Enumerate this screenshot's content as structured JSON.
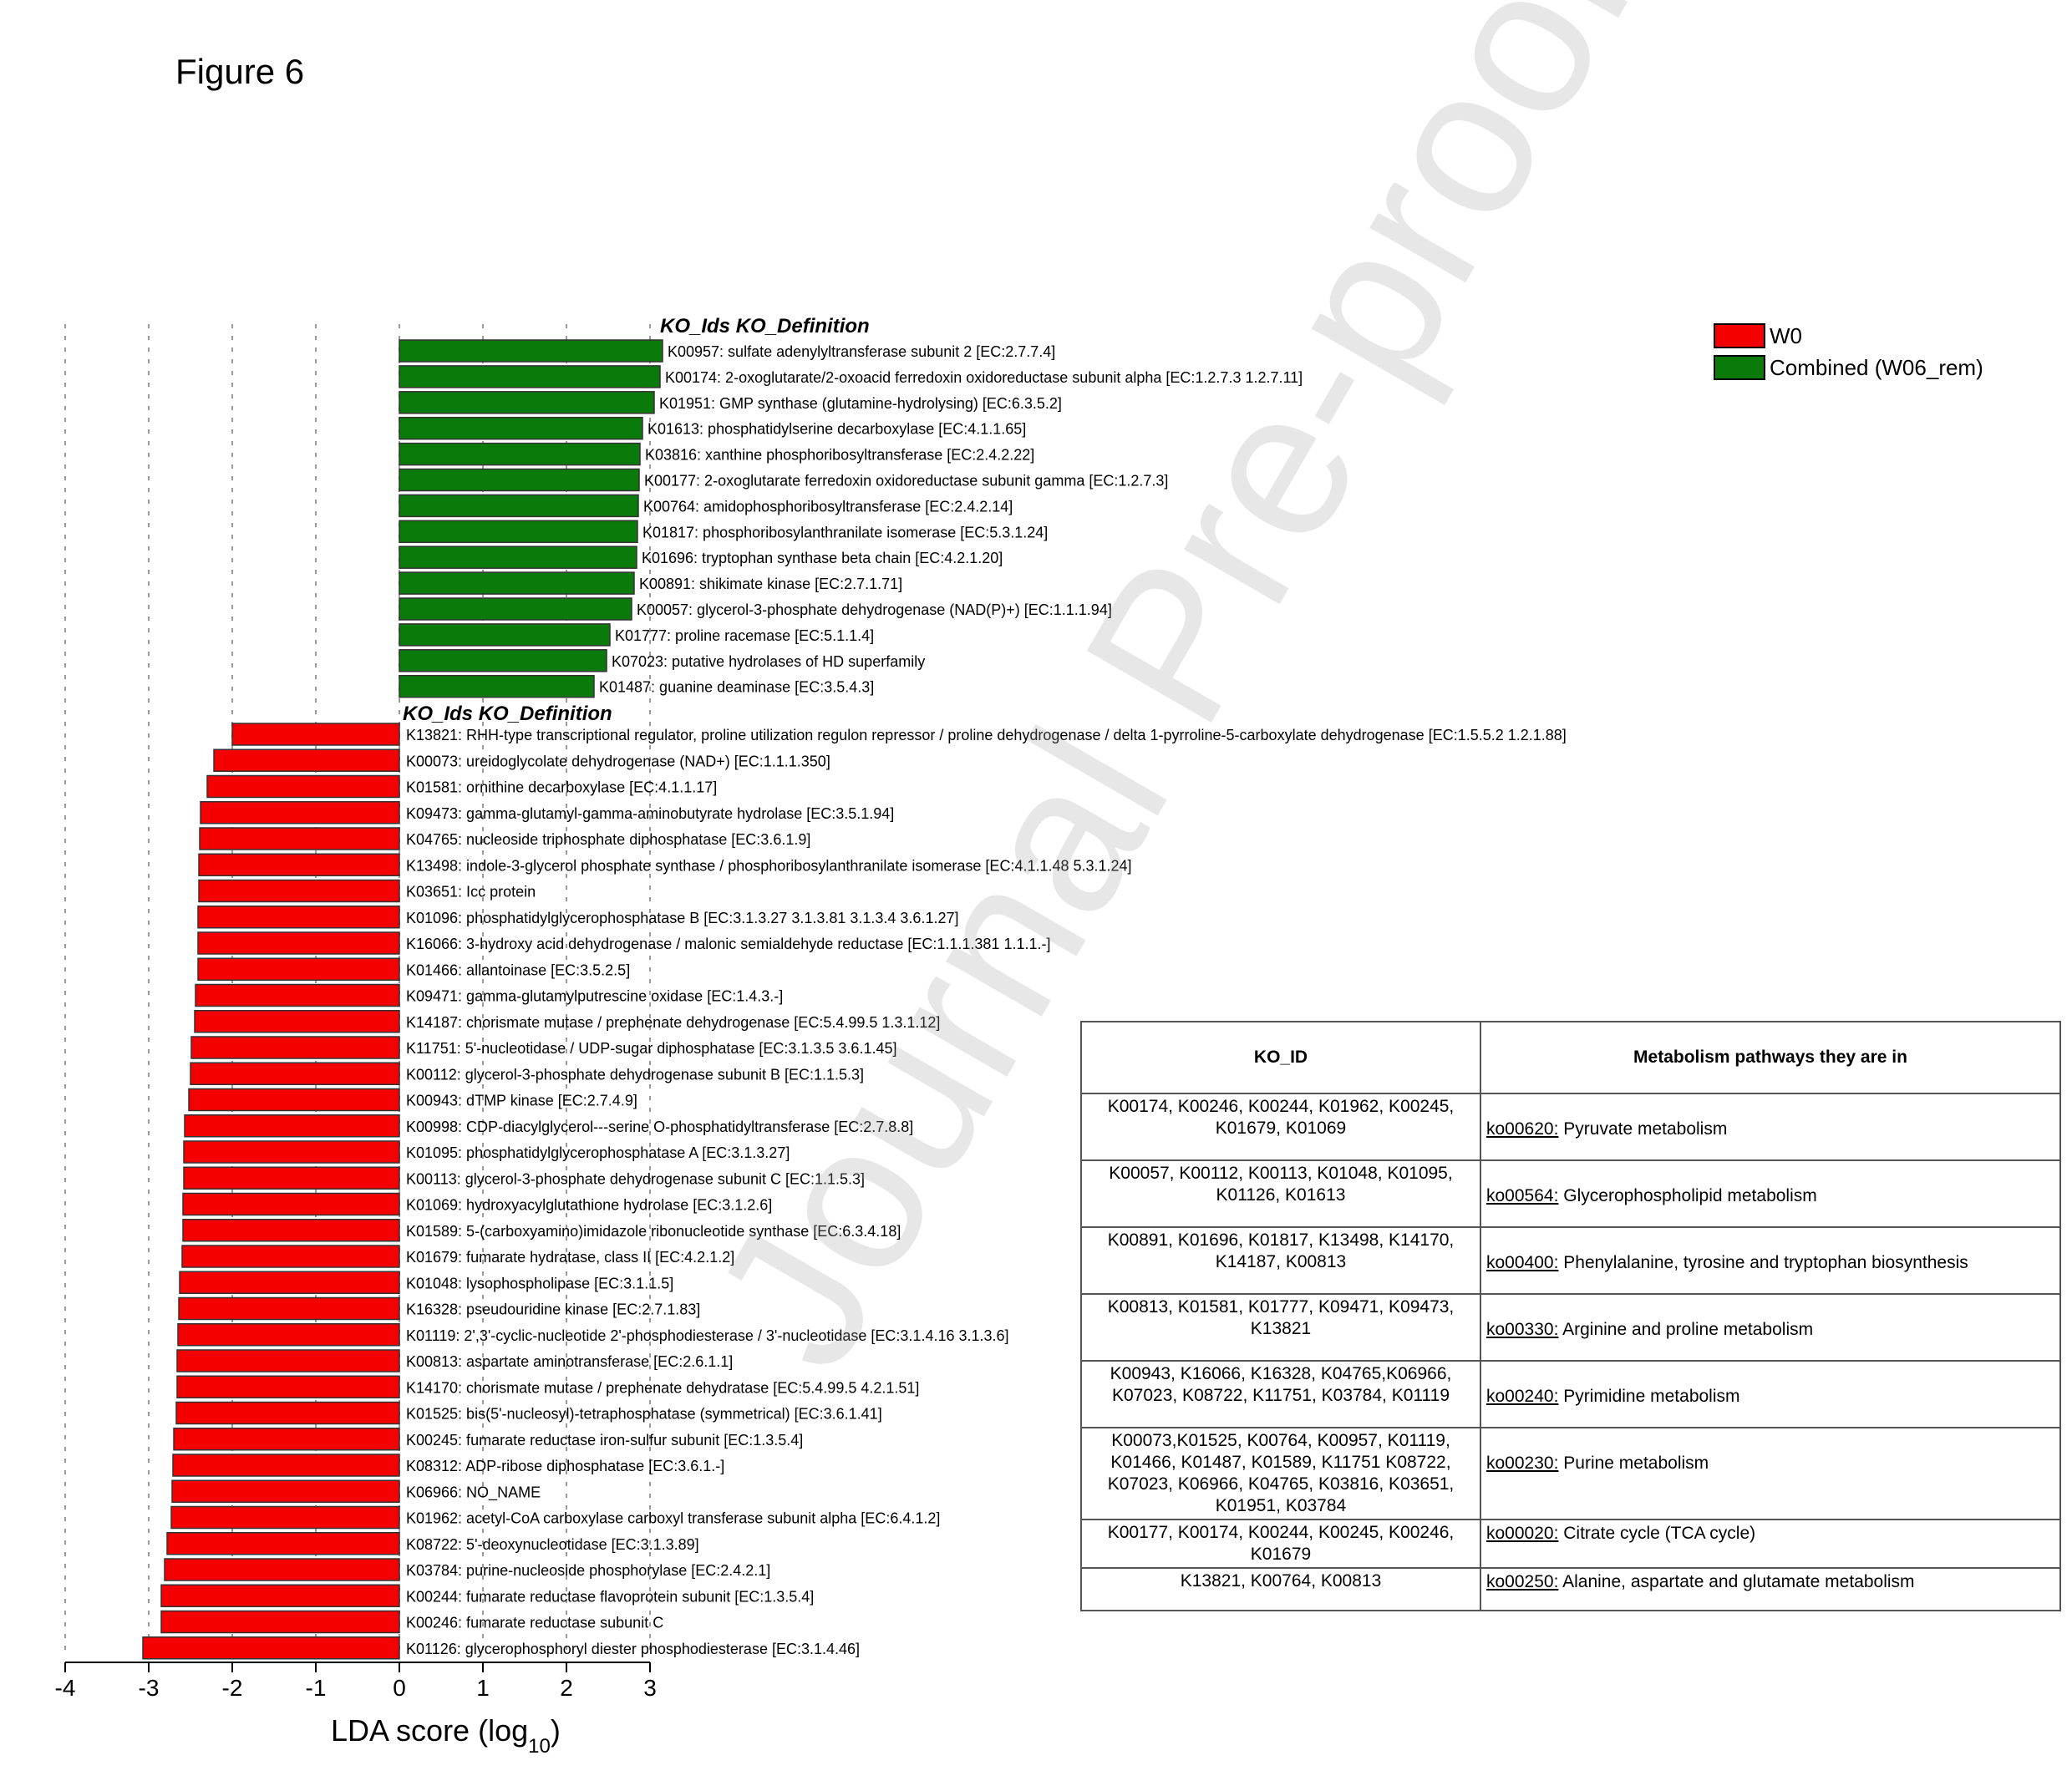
{
  "figure_title": "Figure 6",
  "watermark_text": "Journal Pre-proof",
  "chart_data": {
    "type": "bar",
    "orientation": "horizontal",
    "xlabel": "LDA score (log",
    "xlabel_sub": "10",
    "xlabel_close": ")",
    "xlim": [
      -4,
      3
    ],
    "xticks": [
      "-4",
      "-3",
      "-2",
      "-1",
      "0",
      "1",
      "2",
      "3"
    ],
    "grid": true,
    "legend_position": "top-right",
    "legend": [
      {
        "label": "W0",
        "color": "#f50000"
      },
      {
        "label": "Combined (W06_rem)",
        "color": "#0a7a0a"
      }
    ],
    "section_header": "KO_Ids  KO_Definition",
    "series": [
      {
        "name": "Combined (W06_rem)",
        "color": "#0a7a0a",
        "bars": [
          {
            "value": 3.15,
            "label": "K00957: sulfate adenylyltransferase subunit 2 [EC:2.7.7.4]"
          },
          {
            "value": 3.12,
            "label": "K00174: 2-oxoglutarate/2-oxoacid ferredoxin oxidoreductase subunit alpha [EC:1.2.7.3 1.2.7.11]"
          },
          {
            "value": 3.05,
            "label": "K01951: GMP synthase (glutamine-hydrolysing) [EC:6.3.5.2]"
          },
          {
            "value": 2.91,
            "label": "K01613: phosphatidylserine decarboxylase [EC:4.1.1.65]"
          },
          {
            "value": 2.88,
            "label": "K03816: xanthine phosphoribosyltransferase [EC:2.4.2.22]"
          },
          {
            "value": 2.87,
            "label": "K00177: 2-oxoglutarate ferredoxin oxidoreductase subunit gamma [EC:1.2.7.3]"
          },
          {
            "value": 2.86,
            "label": "K00764: amidophosphoribosyltransferase [EC:2.4.2.14]"
          },
          {
            "value": 2.85,
            "label": "K01817: phosphoribosylanthranilate isomerase [EC:5.3.1.24]"
          },
          {
            "value": 2.84,
            "label": "K01696: tryptophan synthase beta chain [EC:4.2.1.20]"
          },
          {
            "value": 2.81,
            "label": "K00891: shikimate kinase [EC:2.7.1.71]"
          },
          {
            "value": 2.78,
            "label": "K00057: glycerol-3-phosphate dehydrogenase (NAD(P)+) [EC:1.1.1.94]"
          },
          {
            "value": 2.52,
            "label": "K01777: proline racemase [EC:5.1.1.4]"
          },
          {
            "value": 2.48,
            "label": "K07023: putative hydrolases of HD superfamily"
          },
          {
            "value": 2.33,
            "label": "K01487: guanine deaminase [EC:3.5.4.3]"
          }
        ]
      },
      {
        "name": "W0",
        "color": "#f50000",
        "bars": [
          {
            "value": -2.0,
            "label": "K13821: RHH-type transcriptional regulator, proline utilization regulon repressor / proline dehydrogenase / delta 1-pyrroline-5-carboxylate dehydrogenase [EC:1.5.5.2 1.2.1.88]"
          },
          {
            "value": -2.22,
            "label": "K00073: ureidoglycolate dehydrogenase (NAD+) [EC:1.1.1.350]"
          },
          {
            "value": -2.3,
            "label": "K01581: ornithine decarboxylase [EC:4.1.1.17]"
          },
          {
            "value": -2.38,
            "label": "K09473: gamma-glutamyl-gamma-aminobutyrate hydrolase [EC:3.5.1.94]"
          },
          {
            "value": -2.39,
            "label": "K04765: nucleoside triphosphate diphosphatase [EC:3.6.1.9]"
          },
          {
            "value": -2.4,
            "label": "K13498: indole-3-glycerol phosphate synthase / phosphoribosylanthranilate isomerase [EC:4.1.1.48 5.3.1.24]"
          },
          {
            "value": -2.4,
            "label": "K03651: Icc protein"
          },
          {
            "value": -2.41,
            "label": "K01096: phosphatidylglycerophosphatase B [EC:3.1.3.27 3.1.3.81 3.1.3.4 3.6.1.27]"
          },
          {
            "value": -2.41,
            "label": "K16066: 3-hydroxy acid dehydrogenase / malonic semialdehyde reductase [EC:1.1.1.381 1.1.1.-]"
          },
          {
            "value": -2.41,
            "label": "K01466: allantoinase [EC:3.5.2.5]"
          },
          {
            "value": -2.44,
            "label": "K09471: gamma-glutamylputrescine oxidase [EC:1.4.3.-]"
          },
          {
            "value": -2.45,
            "label": "K14187: chorismate mutase / prephenate dehydrogenase [EC:5.4.99.5 1.3.1.12]"
          },
          {
            "value": -2.49,
            "label": "K11751: 5'-nucleotidase / UDP-sugar diphosphatase [EC:3.1.3.5 3.6.1.45]"
          },
          {
            "value": -2.5,
            "label": "K00112: glycerol-3-phosphate dehydrogenase subunit B [EC:1.1.5.3]"
          },
          {
            "value": -2.52,
            "label": "K00943: dTMP kinase [EC:2.7.4.9]"
          },
          {
            "value": -2.57,
            "label": "K00998: CDP-diacylglycerol---serine O-phosphatidyltransferase [EC:2.7.8.8]"
          },
          {
            "value": -2.58,
            "label": "K01095: phosphatidylglycerophosphatase A [EC:3.1.3.27]"
          },
          {
            "value": -2.58,
            "label": "K00113: glycerol-3-phosphate dehydrogenase subunit C [EC:1.1.5.3]"
          },
          {
            "value": -2.59,
            "label": "K01069: hydroxyacylglutathione hydrolase [EC:3.1.2.6]"
          },
          {
            "value": -2.59,
            "label": "K01589: 5-(carboxyamino)imidazole ribonucleotide synthase [EC:6.3.4.18]"
          },
          {
            "value": -2.6,
            "label": "K01679: fumarate hydratase, class II [EC:4.2.1.2]"
          },
          {
            "value": -2.63,
            "label": "K01048: lysophospholipase [EC:3.1.1.5]"
          },
          {
            "value": -2.64,
            "label": "K16328: pseudouridine kinase [EC:2.7.1.83]"
          },
          {
            "value": -2.65,
            "label": "K01119: 2',3'-cyclic-nucleotide 2'-phosphodiesterase / 3'-nucleotidase [EC:3.1.4.16 3.1.3.6]"
          },
          {
            "value": -2.66,
            "label": "K00813: aspartate aminotransferase [EC:2.6.1.1]"
          },
          {
            "value": -2.66,
            "label": "K14170: chorismate mutase / prephenate dehydratase [EC:5.4.99.5 4.2.1.51]"
          },
          {
            "value": -2.67,
            "label": "K01525: bis(5'-nucleosyl)-tetraphosphatase (symmetrical) [EC:3.6.1.41]"
          },
          {
            "value": -2.7,
            "label": "K00245: fumarate reductase iron-sulfur subunit [EC:1.3.5.4]"
          },
          {
            "value": -2.71,
            "label": "K08312: ADP-ribose diphosphatase [EC:3.6.1.-]"
          },
          {
            "value": -2.72,
            "label": "K06966: NO_NAME"
          },
          {
            "value": -2.73,
            "label": "K01962: acetyl-CoA carboxylase carboxyl transferase subunit alpha [EC:6.4.1.2]"
          },
          {
            "value": -2.78,
            "label": "K08722: 5'-deoxynucleotidase [EC:3.1.3.89]"
          },
          {
            "value": -2.81,
            "label": "K03784: purine-nucleoside phosphorylase [EC:2.4.2.1]"
          },
          {
            "value": -2.85,
            "label": "K00244: fumarate reductase flavoprotein subunit [EC:1.3.5.4]"
          },
          {
            "value": -2.85,
            "label": "K00246: fumarate reductase subunit C"
          },
          {
            "value": -3.07,
            "label": "K01126: glycerophosphoryl diester phosphodiesterase [EC:3.1.4.46]"
          }
        ]
      }
    ]
  },
  "pathway_table": {
    "headers": [
      "KO_ID",
      "Metabolism pathways they are in"
    ],
    "rows": [
      {
        "ids": "K00174, K00246, K00244, K01962, K00245, K01679, K01069",
        "ko": "ko00620:",
        "pathway": "Pyruvate metabolism"
      },
      {
        "ids": "K00057, K00112, K00113, K01048, K01095, K01126, K01613",
        "ko": "ko00564:",
        "pathway": "Glycerophospholipid metabolism"
      },
      {
        "ids": "K00891, K01696, K01817, K13498, K14170, K14187, K00813",
        "ko": "ko00400:",
        "pathway": "Phenylalanine, tyrosine and tryptophan biosynthesis"
      },
      {
        "ids": "K00813, K01581, K01777, K09471, K09473, K13821",
        "ko": "ko00330:",
        "pathway": "Arginine and proline metabolism"
      },
      {
        "ids": "K00943, K16066, K16328, K04765,K06966, K07023, K08722, K11751, K03784, K01119",
        "ko": "ko00240:",
        "pathway": "Pyrimidine metabolism"
      },
      {
        "ids": "K00073,K01525, K00764, K00957, K01119, K01466, K01487, K01589, K11751 K08722, K07023, K06966, K04765, K03816, K03651, K01951, K03784",
        "ko": "ko00230:",
        "pathway": "Purine metabolism"
      },
      {
        "ids": "K00177, K00174, K00244, K00245, K00246, K01679",
        "ko": "ko00020:",
        "pathway": "Citrate cycle (TCA cycle)"
      },
      {
        "ids": "K13821, K00764, K00813",
        "ko": "ko00250:",
        "pathway": "Alanine, aspartate and glutamate metabolism"
      }
    ]
  }
}
